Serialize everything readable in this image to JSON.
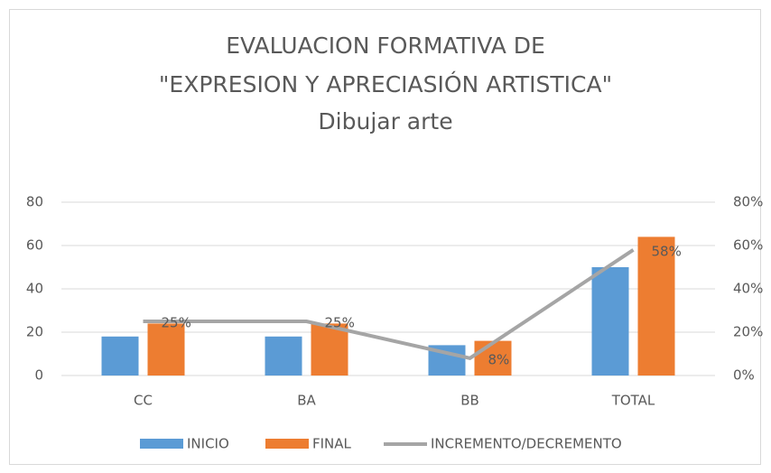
{
  "chart_data": {
    "type": "bar-line",
    "title": [
      "EVALUACION FORMATIVA DE",
      "\"EXPRESION Y APRECIASIÓN ARTISTICA\"",
      "Dibujar arte"
    ],
    "categories": [
      "CC",
      "BA",
      "BB",
      "TOTAL"
    ],
    "series": [
      {
        "name": "INICIO",
        "color": "#5b9bd5",
        "values": [
          18,
          18,
          14,
          50
        ]
      },
      {
        "name": "FINAL",
        "color": "#ed7d31",
        "values": [
          24,
          24,
          16,
          64
        ]
      },
      {
        "name": "INCREMENTO/DECREMENTO",
        "color": "#a5a5a5",
        "axis": "y2",
        "values": [
          25,
          25,
          8,
          58
        ],
        "value_labels": [
          "25%",
          "25%",
          "8%",
          "58%"
        ]
      }
    ],
    "ylim": [
      0,
      80
    ],
    "yticks": [
      0,
      20,
      40,
      60,
      80
    ],
    "y2lim": [
      0,
      80
    ],
    "y2ticks": [
      {
        "value": 0,
        "label": "0%"
      },
      {
        "value": 20,
        "label": "20%"
      },
      {
        "value": 40,
        "label": "40%"
      },
      {
        "value": 60,
        "label": "60%"
      },
      {
        "value": 80,
        "label": "80%"
      }
    ],
    "grid": true,
    "legend": "bottom"
  }
}
